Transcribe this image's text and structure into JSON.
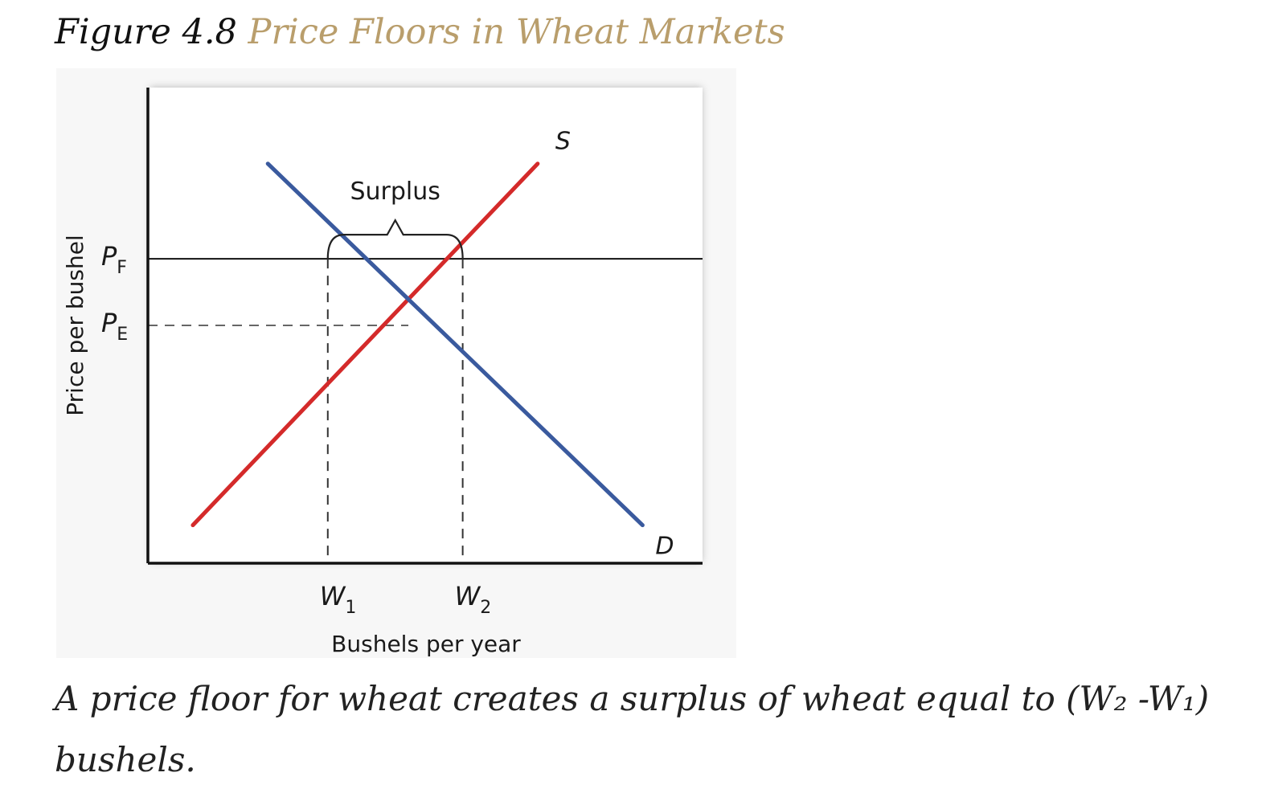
{
  "figure": {
    "number": "Figure 4.8",
    "title": "Price Floors in Wheat Markets",
    "caption": "A price floor for wheat creates a surplus of wheat equal to (W₂ -W₁) bushels."
  },
  "chart_data": {
    "type": "line",
    "xlabel": "Bushels per year",
    "ylabel": "Price per bushel",
    "grid": false,
    "series": [
      {
        "name": "S",
        "color": "#d42a2a",
        "points": [
          [
            0.3,
            0.2
          ],
          [
            2.6,
            2.1
          ]
        ]
      },
      {
        "name": "D",
        "color": "#3a5a9e",
        "points": [
          [
            0.8,
            2.1
          ],
          [
            3.3,
            0.2
          ]
        ]
      }
    ],
    "reference_lines": [
      {
        "label_main": "P",
        "label_sub": "F",
        "axis": "y",
        "value": 1.6,
        "style": "solid"
      },
      {
        "label_main": "P",
        "label_sub": "E",
        "axis": "y",
        "value": 1.25,
        "style": "dashed"
      }
    ],
    "x_markers": [
      {
        "label_main": "W",
        "label_sub": "1",
        "value": 1.2
      },
      {
        "label_main": "W",
        "label_sub": "2",
        "value": 2.1
      }
    ],
    "annotation": {
      "text": "Surplus",
      "span": [
        "W1",
        "W2"
      ]
    },
    "xlim": [
      0,
      3.7
    ],
    "ylim": [
      0,
      2.5
    ]
  }
}
